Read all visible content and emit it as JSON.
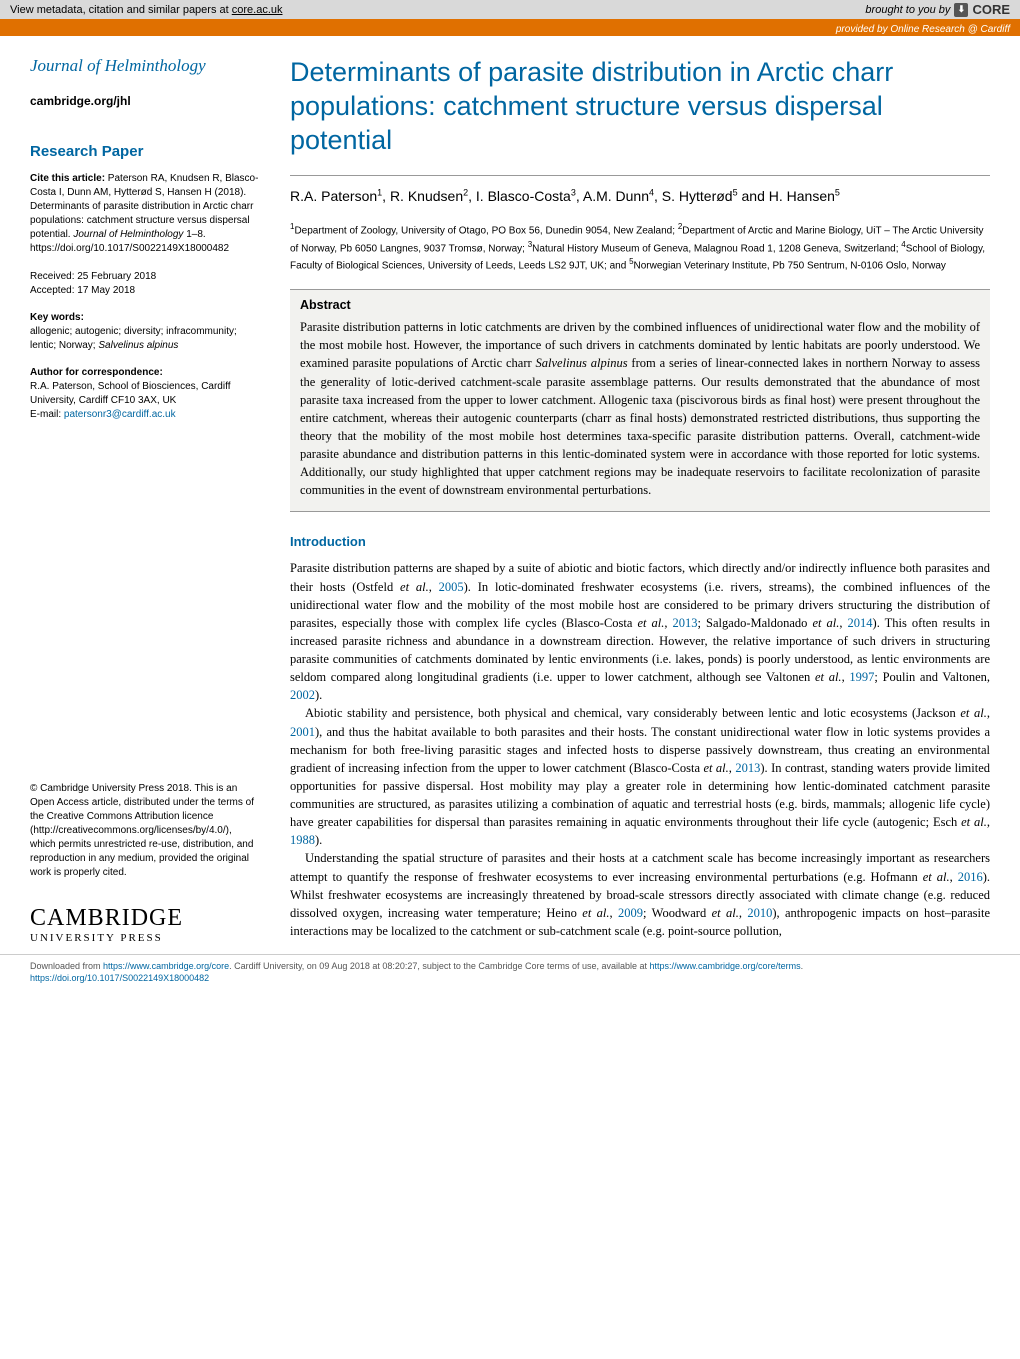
{
  "banner": {
    "metadata_text": "View metadata, citation and similar papers at ",
    "metadata_link": "core.ac.uk",
    "brought_by": "brought to you by",
    "core": "CORE",
    "provided_by": "provided by Online Research @ Cardiff"
  },
  "sidebar": {
    "journal_title": "Journal of Helminthology",
    "journal_url": "cambridge.org/jhl",
    "section_label": "Research Paper",
    "cite_label": "Cite this article:",
    "cite_text": " Paterson RA, Knudsen R, Blasco-Costa I, Dunn AM, Hytterød S, Hansen H (2018). Determinants of parasite distribution in Arctic charr populations: catchment structure versus dispersal potential. ",
    "cite_journal": "Journal of Helminthology",
    "cite_pages": " 1–8. https://doi.org/10.1017/S0022149X18000482",
    "received": "Received: 25 February 2018",
    "accepted": "Accepted: 17 May 2018",
    "keywords_hdr": "Key words:",
    "keywords_text": "allogenic; autogenic; diversity; infracommunity; lentic; Norway; ",
    "keywords_italic": "Salvelinus alpinus",
    "corr_hdr": "Author for correspondence:",
    "corr_text": "R.A. Paterson,   School of Biosciences, Cardiff University, Cardiff CF10 3AX, UK",
    "corr_email_label": "E-mail: ",
    "corr_email": "patersonr3@cardiff.ac.uk",
    "license": "© Cambridge University Press 2018. This is an Open Access article, distributed under the terms of the Creative Commons Attribution licence (http://creativecommons.org/licenses/by/4.0/), which permits unrestricted re-use, distribution, and reproduction in any medium, provided the original work is properly cited.",
    "logo_top": "CAMBRIDGE",
    "logo_bot": "UNIVERSITY PRESS"
  },
  "article": {
    "title": "Determinants of parasite distribution in Arctic charr populations: catchment structure versus dispersal potential",
    "authors_html": "R.A. Paterson<sup>1</sup>, R. Knudsen<sup>2</sup>, I. Blasco-Costa<sup>3</sup>, A.M. Dunn<sup>4</sup>, S. Hytterød<sup>5</sup> and H. Hansen<sup>5</sup>",
    "affiliations_html": "<sup>1</sup>Department of Zoology, University of Otago, PO Box 56, Dunedin 9054, New Zealand; <sup>2</sup>Department of Arctic and Marine Biology, UiT – The Arctic University of Norway, Pb 6050 Langnes, 9037 Tromsø, Norway; <sup>3</sup>Natural History Museum of Geneva, Malagnou Road 1, 1208 Geneva, Switzerland; <sup>4</sup>School of Biology, Faculty of Biological Sciences, University of Leeds, Leeds LS2 9JT, UK; and <sup>5</sup>Norwegian Veterinary Institute, Pb 750 Sentrum, N-0106 Oslo, Norway",
    "abstract_hdr": "Abstract",
    "abstract_html": "Parasite distribution patterns in lotic catchments are driven by the combined influences of unidirectional water flow and the mobility of the most mobile host. However, the importance of such drivers in catchments dominated by lentic habitats are poorly understood. We examined parasite populations of Arctic charr <span class=\"italic\">Salvelinus alpinus</span> from a series of linear-connected lakes in northern Norway to assess the generality of lotic-derived catchment-scale parasite assemblage patterns. Our results demonstrated that the abundance of most parasite taxa increased from the upper to lower catchment. Allogenic taxa (piscivorous birds as final host) were present throughout the entire catchment, whereas their autogenic counterparts (charr as final hosts) demonstrated restricted distributions, thus supporting the theory that the mobility of the most mobile host determines taxa-specific parasite distribution patterns. Overall, catchment-wide parasite abundance and distribution patterns in this lentic-dominated system were in accordance with those reported for lotic systems. Additionally, our study highlighted that upper catchment regions may be inadequate reservoirs to facilitate recolonization of parasite communities in the event of downstream environmental perturbations.",
    "intro_hdr": "Introduction",
    "p1_html": "Parasite distribution patterns are shaped by a suite of abiotic and biotic factors, which directly and/or indirectly influence both parasites and their hosts (Ostfeld <span class=\"italic\">et al.</span>, <span class=\"ref\">2005</span>). In lotic-dominated freshwater ecosystems (i.e. rivers, streams), the combined influences of the unidirectional water flow and the mobility of the most mobile host are considered to be primary drivers structuring the distribution of parasites, especially those with complex life cycles (Blasco-Costa <span class=\"italic\">et al.</span>, <span class=\"ref\">2013</span>; Salgado-Maldonado <span class=\"italic\">et al.</span>, <span class=\"ref\">2014</span>). This often results in increased parasite richness and abundance in a downstream direction. However, the relative importance of such drivers in structuring parasite communities of catchments dominated by lentic environments (i.e. lakes, ponds) is poorly understood, as lentic environments are seldom compared along longitudinal gradients (i.e. upper to lower catchment, although see Valtonen <span class=\"italic\">et al.</span>, <span class=\"ref\">1997</span>; Poulin and Valtonen, <span class=\"ref\">2002</span>).",
    "p2_html": "Abiotic stability and persistence, both physical and chemical, vary considerably between lentic and lotic ecosystems (Jackson <span class=\"italic\">et al.</span>, <span class=\"ref\">2001</span>), and thus the habitat available to both parasites and their hosts. The constant unidirectional water flow in lotic systems provides a mechanism for both free-living parasitic stages and infected hosts to disperse passively downstream, thus creating an environmental gradient of increasing infection from the upper to lower catchment (Blasco-Costa <span class=\"italic\">et al.</span>, <span class=\"ref\">2013</span>). In contrast, standing waters provide limited opportunities for passive dispersal. Host mobility may play a greater role in determining how lentic-dominated catchment parasite communities are structured, as parasites utilizing a combination of aquatic and terrestrial hosts (e.g. birds, mammals; allogenic life cycle) have greater capabilities for dispersal than parasites remaining in aquatic environments throughout their life cycle (autogenic; Esch <span class=\"italic\">et al.</span>, <span class=\"ref\">1988</span>).",
    "p3_html": "Understanding the spatial structure of parasites and their hosts at a catchment scale has become increasingly important as researchers attempt to quantify the response of freshwater ecosystems to ever increasing environmental perturbations (e.g. Hofmann <span class=\"italic\">et al.</span>, <span class=\"ref\">2016</span>). Whilst freshwater ecosystems are increasingly threatened by broad-scale stressors directly associated with climate change (e.g. reduced dissolved oxygen, increasing water temperature; Heino <span class=\"italic\">et al.</span>, <span class=\"ref\">2009</span>; Woodward <span class=\"italic\">et al.</span>, <span class=\"ref\">2010</span>), anthropogenic impacts on host–parasite interactions may be localized to the catchment or sub-catchment scale (e.g. point-source pollution,"
  },
  "footer": {
    "line1_pre": "Downloaded from ",
    "line1_url": "https://www.cambridge.org/core",
    "line1_mid": ". Cardiff University, on 09 Aug 2018 at 08:20:27, subject to the Cambridge Core terms of use, available at ",
    "line1_url2": "https://www.cambridge.org/core/terms",
    "line1_end": ".",
    "line2": "https://doi.org/10.1017/S0022149X18000482"
  },
  "colors": {
    "brand_blue": "#0066a1",
    "orange": "#e07000",
    "banner_grey": "#d9d9d9",
    "abstract_bg": "#f2f2ef"
  }
}
